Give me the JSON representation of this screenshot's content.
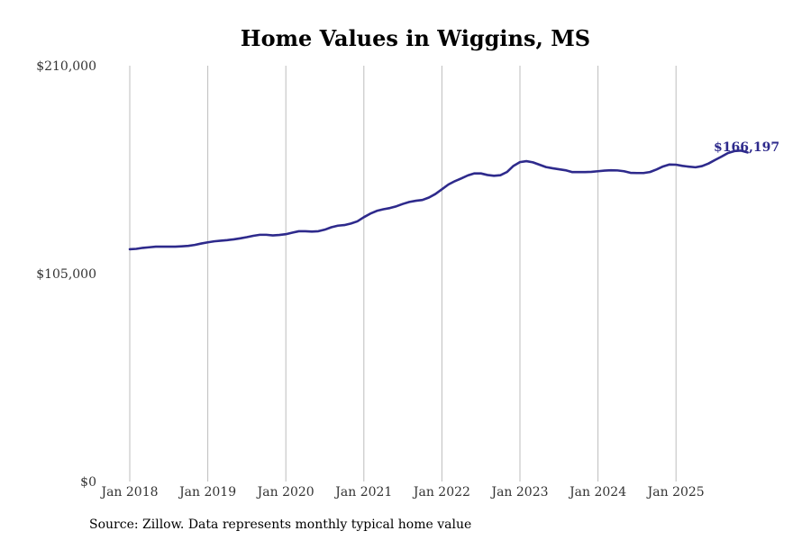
{
  "chart_data": {
    "type": "line",
    "title": "Home Values in Wiggins, MS",
    "source": "Source: Zillow. Data represents monthly typical home value",
    "ylim": [
      0,
      210000
    ],
    "y_ticks": [
      "$0",
      "$105,000",
      "$210,000"
    ],
    "x_ticks": [
      "Jan 2018",
      "Jan 2019",
      "Jan 2020",
      "Jan 2021",
      "Jan 2022",
      "Jan 2023",
      "Jan 2024",
      "Jan 2025"
    ],
    "grid": "vertical",
    "line_color": "#2e2a8c",
    "end_label": "$166,197",
    "series": [
      {
        "start": "2018-01",
        "values": [
          117300,
          117500,
          118000,
          118300,
          118600,
          118600,
          118600,
          118600,
          118800,
          119000,
          119500,
          120200,
          120800,
          121300,
          121600,
          121900,
          122300,
          122800,
          123400,
          124100,
          124600,
          124600,
          124300,
          124500,
          124900,
          125700,
          126400,
          126400,
          126200,
          126400,
          127200,
          128400,
          129200,
          129500,
          130300,
          131400,
          133500,
          135300,
          136700,
          137500,
          138100,
          139000,
          140200,
          141200,
          141800,
          142200,
          143400,
          145200,
          147600,
          150000,
          151700,
          153100,
          154600,
          155600,
          155600,
          154800,
          154400,
          154700,
          156300,
          159400,
          161300,
          161800,
          161200,
          160000,
          158800,
          158200,
          157700,
          157200,
          156300,
          156300,
          156300,
          156400,
          156700,
          157000,
          157200,
          157100,
          156700,
          155900,
          155800,
          155800,
          156300,
          157600,
          159100,
          160100,
          160000,
          159400,
          159000,
          158700,
          159300,
          160600,
          162400,
          164100,
          165900,
          166900,
          167100,
          166197
        ]
      }
    ]
  }
}
